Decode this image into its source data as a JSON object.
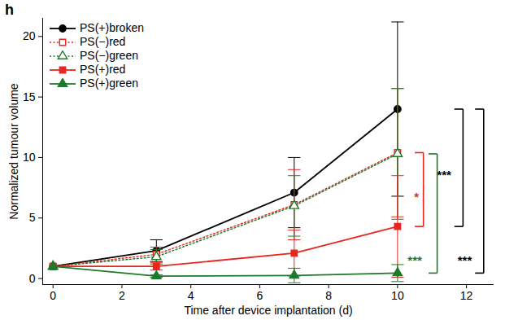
{
  "chart_data": {
    "type": "line",
    "panel": "h",
    "x_label": "Time after device implantation (d)",
    "y_label": "Normalized tumour volume",
    "x": [
      0,
      3,
      7,
      10
    ],
    "xlim": [
      -0.3,
      12.8
    ],
    "xticks": [
      0,
      2,
      4,
      6,
      8,
      10,
      12
    ],
    "ylim": [
      -0.5,
      21.5
    ],
    "yticks": [
      0,
      5,
      10,
      15,
      20
    ],
    "legend": "top-left",
    "series": [
      {
        "name": "PS(+)broken",
        "color": "#000000",
        "marker": "circle",
        "line_style": "solid",
        "values": [
          1,
          2.3,
          7.1,
          14.0
        ],
        "error": [
          0,
          0.9,
          2.9,
          7.2
        ]
      },
      {
        "name": "PS(−)red",
        "color": "#e8251f",
        "marker": "open-square",
        "line_style": "dotted",
        "values": [
          1,
          2.0,
          6.1,
          10.4
        ],
        "error": [
          0,
          0.6,
          2.9,
          5.3
        ]
      },
      {
        "name": "PS(−)green",
        "color": "#1c7a2a",
        "marker": "open-triangle",
        "line_style": "dotted",
        "values": [
          1,
          1.8,
          6.0,
          10.3
        ],
        "error": [
          0,
          0.6,
          2.5,
          5.4
        ]
      },
      {
        "name": "PS(+)red",
        "color": "#e8251f",
        "marker": "square",
        "line_style": "solid",
        "values": [
          1,
          1.0,
          2.1,
          4.3
        ],
        "error": [
          0,
          0.3,
          1.9,
          4.2
        ]
      },
      {
        "name": "PS(+)green",
        "color": "#1c7a2a",
        "marker": "triangle",
        "line_style": "solid",
        "values": [
          1,
          0.2,
          0.25,
          0.45
        ],
        "error": [
          0,
          0.1,
          0.6,
          0.7
        ]
      }
    ],
    "annotations": [
      {
        "text": "***",
        "color": "#000000",
        "series": [
          "PS(+)broken",
          "PS(+)red"
        ]
      },
      {
        "text": "*",
        "color": "#e8251f",
        "series": [
          "PS(−)red",
          "PS(+)red"
        ]
      },
      {
        "text": "***",
        "color": "#1c7a2a",
        "series": [
          "PS(−)green",
          "PS(+)green"
        ]
      },
      {
        "text": "***",
        "color": "#000000",
        "series": [
          "PS(+)broken",
          "PS(+)green"
        ]
      }
    ]
  }
}
